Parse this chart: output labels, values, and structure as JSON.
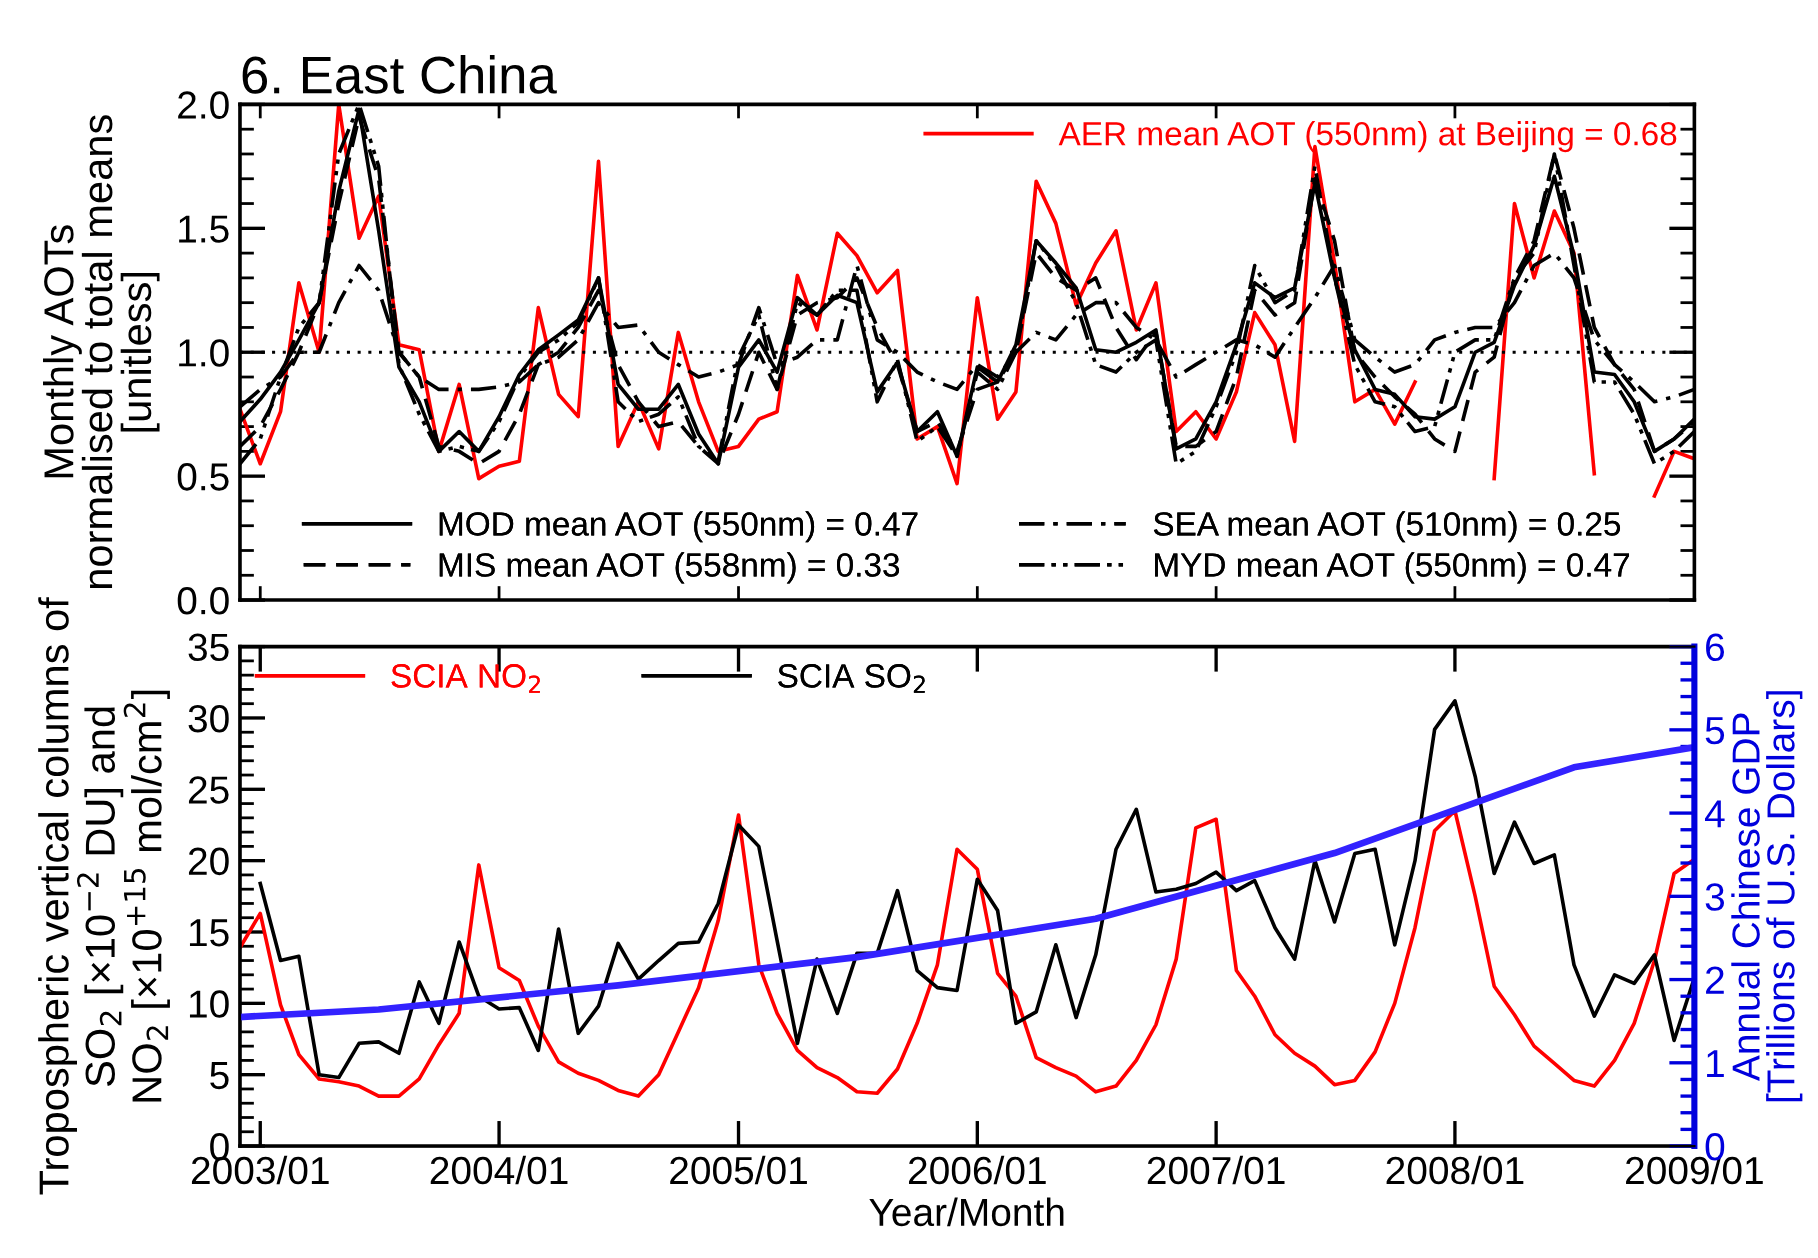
{
  "chart_data": [
    {
      "type": "line",
      "title": "6. East China",
      "ylabel": "Monthly AOTs\nnormalised to total means\n[unitless]",
      "x": [
        "2002-12",
        "2003-01",
        "2003-02",
        "2003-03",
        "2003-04",
        "2003-05",
        "2003-06",
        "2003-07",
        "2003-08",
        "2003-09",
        "2003-10",
        "2003-11",
        "2003-12",
        "2004-01",
        "2004-02",
        "2004-03",
        "2004-04",
        "2004-05",
        "2004-06",
        "2004-07",
        "2004-08",
        "2004-09",
        "2004-10",
        "2004-11",
        "2004-12",
        "2005-01",
        "2005-02",
        "2005-03",
        "2005-04",
        "2005-05",
        "2005-06",
        "2005-07",
        "2005-08",
        "2005-09",
        "2005-10",
        "2005-11",
        "2005-12",
        "2006-01",
        "2006-02",
        "2006-03",
        "2006-04",
        "2006-05",
        "2006-06",
        "2006-07",
        "2006-08",
        "2006-09",
        "2006-10",
        "2006-11",
        "2006-12",
        "2007-01",
        "2007-02",
        "2007-03",
        "2007-04",
        "2007-05",
        "2007-06",
        "2007-07",
        "2007-08",
        "2007-09",
        "2007-10",
        "2007-11",
        "2007-12",
        "2008-01",
        "2008-02",
        "2008-03",
        "2008-04",
        "2008-05",
        "2008-06",
        "2008-07",
        "2008-08",
        "2008-09",
        "2008-10",
        "2008-11",
        "2008-12",
        "2009-01"
      ],
      "series": [
        {
          "name": "AER mean AOT (550nm) at Beijing = 0.68",
          "color": "#ff0000",
          "line_style": "solid",
          "values": [
            0.77,
            0.55,
            0.76,
            1.28,
            1.0,
            2.0,
            1.46,
            1.63,
            1.03,
            1.01,
            0.6,
            0.87,
            0.49,
            0.54,
            0.56,
            1.18,
            0.83,
            0.74,
            1.77,
            0.62,
            0.8,
            0.61,
            1.08,
            0.8,
            0.6,
            0.62,
            0.73,
            0.76,
            1.31,
            1.09,
            1.48,
            1.39,
            1.24,
            1.33,
            0.65,
            0.7,
            0.47,
            1.22,
            0.73,
            0.84,
            1.69,
            1.52,
            1.19,
            1.36,
            1.49,
            1.09,
            1.28,
            0.68,
            0.76,
            0.65,
            0.84,
            1.16,
            1.03,
            0.64,
            1.83,
            1.36,
            0.8,
            0.85,
            0.71,
            0.88,
            null,
            null,
            null,
            0.49,
            1.6,
            1.3,
            1.57,
            1.4,
            0.51,
            null,
            null,
            0.42,
            0.6,
            0.57
          ]
        },
        {
          "name": "MOD mean AOT (550nm) = 0.47",
          "color": "#000000",
          "line_style": "solid",
          "values": [
            0.72,
            0.81,
            0.92,
            1.05,
            1.2,
            1.65,
            1.98,
            1.49,
            0.94,
            0.8,
            0.6,
            0.68,
            0.6,
            0.74,
            0.91,
            1.01,
            1.07,
            1.13,
            1.3,
            0.87,
            0.77,
            0.77,
            0.87,
            0.67,
            0.55,
            0.94,
            1.05,
            0.92,
            1.22,
            1.15,
            1.23,
            1.2,
            0.84,
            0.96,
            0.68,
            0.76,
            0.58,
            0.94,
            0.88,
            1.03,
            1.45,
            1.36,
            1.26,
            1.01,
            1.0,
            1.04,
            1.09,
            0.61,
            0.65,
            0.8,
            1.03,
            1.28,
            1.22,
            1.26,
            1.68,
            1.3,
            1.01,
            0.85,
            0.83,
            0.74,
            0.73,
            0.78,
            1.0,
            1.04,
            1.27,
            1.43,
            1.71,
            1.39,
            0.92,
            0.91,
            0.8,
            0.6,
            0.65,
            0.73
          ]
        },
        {
          "name": "MIS mean AOT (558nm) = 0.33",
          "color": "#000000",
          "line_style": "dashed",
          "values": [
            0.62,
            0.7,
            0.85,
            1.0,
            1.2,
            1.6,
            1.95,
            1.7,
            1.0,
            0.9,
            0.62,
            0.6,
            0.55,
            0.6,
            0.75,
            0.95,
            1.0,
            1.1,
            1.25,
            0.95,
            0.8,
            0.7,
            0.72,
            0.62,
            0.55,
            0.75,
            1.0,
            0.85,
            1.15,
            1.2,
            1.22,
            1.3,
            1.1,
            0.95,
            0.68,
            0.72,
            0.6,
            0.85,
            0.88,
            1.0,
            1.4,
            1.3,
            1.25,
            1.3,
            1.1,
            0.97,
            1.08,
            0.62,
            0.62,
            0.68,
            0.9,
            1.25,
            1.15,
            1.2,
            1.7,
            1.45,
            1.0,
            0.9,
            0.82,
            0.75,
            0.65,
            0.6,
            0.92,
            0.98,
            1.3,
            1.45,
            1.8,
            1.5,
            1.1,
            0.95,
            0.85,
            0.6,
            0.65,
            0.72
          ]
        },
        {
          "name": "SEA mean AOT (510nm) = 0.25",
          "color": "#000000",
          "line_style": "dashdot",
          "values": [
            0.78,
            0.85,
            0.9,
            1.0,
            1.0,
            1.2,
            1.35,
            1.25,
            1.0,
            0.9,
            0.85,
            0.85,
            0.85,
            0.86,
            0.88,
            0.95,
            0.98,
            1.05,
            1.2,
            1.1,
            1.11,
            1.0,
            0.95,
            0.9,
            0.92,
            0.95,
            1.18,
            0.95,
            0.98,
            1.05,
            1.05,
            1.35,
            1.05,
            1.0,
            0.92,
            0.88,
            0.85,
            0.95,
            0.9,
            1.0,
            1.08,
            1.05,
            1.15,
            1.2,
            1.2,
            1.1,
            1.05,
            0.9,
            0.95,
            1.0,
            1.05,
            1.03,
            0.98,
            1.1,
            1.22,
            1.35,
            1.05,
            0.98,
            0.92,
            0.95,
            1.05,
            1.08,
            1.1,
            1.1,
            1.2,
            1.35,
            1.4,
            1.3,
            1.05,
            0.95,
            0.88,
            0.8,
            0.82,
            0.85
          ]
        },
        {
          "name": "MYD mean AOT (550nm) = 0.47",
          "color": "#000000",
          "line_style": "dashdotdot",
          "values": [
            0.55,
            0.65,
            0.9,
            1.1,
            1.2,
            1.8,
            2.0,
            1.75,
            0.95,
            0.75,
            0.6,
            0.62,
            0.6,
            0.72,
            0.9,
            1.0,
            1.05,
            1.12,
            1.3,
            0.8,
            0.72,
            0.75,
            0.82,
            0.62,
            0.56,
            0.98,
            1.15,
            0.85,
            1.2,
            1.15,
            1.25,
            1.25,
            0.8,
            0.97,
            0.64,
            0.7,
            0.58,
            0.92,
            0.85,
            1.0,
            1.45,
            1.35,
            1.2,
            0.95,
            0.92,
            1.0,
            1.05,
            0.55,
            0.6,
            0.78,
            1.0,
            1.35,
            1.2,
            1.25,
            1.75,
            1.3,
            0.95,
            0.8,
            0.78,
            0.68,
            0.7,
            1.0,
            1.05,
            1.05,
            1.3,
            1.4,
            1.8,
            1.35,
            0.88,
            0.88,
            0.75,
            0.55,
            0.6,
            0.68
          ]
        }
      ],
      "ref_lines": [
        {
          "axis": "y",
          "value": 1.0,
          "color": "#000000",
          "line_style": "dotted"
        }
      ],
      "xlim": [
        "2002-12",
        "2009-01"
      ],
      "xticks": [
        {
          "value": "2003-01",
          "label": null
        },
        {
          "value": "2004-01",
          "label": null
        },
        {
          "value": "2005-01",
          "label": null
        },
        {
          "value": "2006-01",
          "label": null
        },
        {
          "value": "2007-01",
          "label": null
        },
        {
          "value": "2008-01",
          "label": null
        },
        {
          "value": "2009-01",
          "label": null
        }
      ],
      "ylim": [
        0,
        2
      ],
      "yticks": [
        {
          "value": 0,
          "label": "0.0"
        },
        {
          "value": 0.1,
          "label": null
        },
        {
          "value": 0.2,
          "label": null
        },
        {
          "value": 0.3,
          "label": null
        },
        {
          "value": 0.4,
          "label": null
        },
        {
          "value": 0.5,
          "label": "0.5"
        },
        {
          "value": 0.6,
          "label": null
        },
        {
          "value": 0.7,
          "label": null
        },
        {
          "value": 0.8,
          "label": null
        },
        {
          "value": 0.9,
          "label": null
        },
        {
          "value": 1.0,
          "label": "1.0"
        },
        {
          "value": 1.1,
          "label": null
        },
        {
          "value": 1.2,
          "label": null
        },
        {
          "value": 1.3,
          "label": null
        },
        {
          "value": 1.4,
          "label": null
        },
        {
          "value": 1.5,
          "label": "1.5"
        },
        {
          "value": 1.6,
          "label": null
        },
        {
          "value": 1.7,
          "label": null
        },
        {
          "value": 1.8,
          "label": null
        },
        {
          "value": 1.9,
          "label": null
        },
        {
          "value": 2.0,
          "label": "2.0"
        }
      ],
      "tick_labels": "y",
      "grid": false,
      "legend": "bottom"
    },
    {
      "type": "line",
      "xlabel": "Year/Month",
      "ylabel": "Tropospheric vertical columns of\nSO$_{2}$ [×10$^{−2}$ DU] and\nNO$_{2}$ [×10$^{+15}$ mol/cm$^{2}$]",
      "y2label": "Annual Chinese GDP\n[Trillions of U.S. Dollars]",
      "x": [
        "2002-12",
        "2003-01",
        "2003-02",
        "2003-03",
        "2003-04",
        "2003-05",
        "2003-06",
        "2003-07",
        "2003-08",
        "2003-09",
        "2003-10",
        "2003-11",
        "2003-12",
        "2004-01",
        "2004-02",
        "2004-03",
        "2004-04",
        "2004-05",
        "2004-06",
        "2004-07",
        "2004-08",
        "2004-09",
        "2004-10",
        "2004-11",
        "2004-12",
        "2005-01",
        "2005-02",
        "2005-03",
        "2005-04",
        "2005-05",
        "2005-06",
        "2005-07",
        "2005-08",
        "2005-09",
        "2005-10",
        "2005-11",
        "2005-12",
        "2006-01",
        "2006-02",
        "2006-03",
        "2006-04",
        "2006-05",
        "2006-06",
        "2006-07",
        "2006-08",
        "2006-09",
        "2006-10",
        "2006-11",
        "2006-12",
        "2007-01",
        "2007-02",
        "2007-03",
        "2007-04",
        "2007-05",
        "2007-06",
        "2007-07",
        "2007-08",
        "2007-09",
        "2007-10",
        "2007-11",
        "2007-12",
        "2008-01",
        "2008-02",
        "2008-03",
        "2008-04",
        "2008-05",
        "2008-06",
        "2008-07",
        "2008-08",
        "2008-09",
        "2008-10",
        "2008-11",
        "2008-12",
        "2009-01"
      ],
      "series": [
        {
          "name": "SCIA NO$_{2}$",
          "color": "#ff0000",
          "values": [
            13.9,
            16.3,
            9.9,
            6.4,
            4.7,
            4.5,
            4.2,
            3.5,
            3.5,
            4.7,
            7.1,
            9.3,
            19.7,
            12.5,
            11.6,
            8.4,
            5.9,
            5.1,
            4.6,
            3.9,
            3.5,
            5.0,
            8.0,
            11.1,
            15.8,
            23.2,
            12.7,
            9.3,
            6.7,
            5.5,
            4.8,
            3.8,
            3.7,
            5.4,
            8.6,
            12.7,
            20.8,
            19.4,
            12.1,
            10.5,
            6.2,
            5.5,
            4.9,
            3.8,
            4.2,
            6.0,
            8.5,
            13.1,
            22.3,
            22.9,
            12.3,
            10.5,
            7.8,
            6.5,
            5.6,
            4.3,
            4.6,
            6.6,
            10.0,
            15.3,
            22.1,
            23.5,
            17.5,
            11.2,
            9.2,
            7.0,
            5.8,
            4.6,
            4.2,
            6.0,
            8.6,
            13.0,
            19.1,
            20.1
          ]
        },
        {
          "name": "SCIA SO$_{2}$",
          "color": "#000000",
          "values": [
            null,
            18.4,
            13.0,
            13.3,
            5.0,
            4.8,
            7.2,
            7.3,
            6.5,
            11.5,
            8.6,
            14.3,
            10.5,
            9.6,
            9.7,
            6.7,
            15.2,
            7.9,
            9.8,
            14.2,
            11.7,
            13.0,
            14.2,
            14.3,
            17.0,
            22.5,
            21.0,
            14.4,
            7.2,
            13.1,
            9.3,
            13.5,
            13.5,
            17.9,
            12.3,
            11.1,
            10.9,
            18.7,
            16.5,
            8.6,
            9.4,
            14.1,
            9.0,
            13.4,
            20.8,
            23.6,
            17.8,
            18.0,
            18.4,
            19.2,
            17.9,
            18.6,
            15.3,
            13.1,
            20.0,
            15.7,
            20.5,
            20.8,
            14.1,
            20.0,
            29.2,
            31.2,
            25.9,
            19.1,
            22.7,
            19.8,
            20.4,
            12.7,
            9.1,
            12.0,
            11.4,
            13.4,
            7.4,
            11.8
          ]
        },
        {
          "color": "#3322ff",
          "axis": "y2",
          "x": [
            "2002-12",
            "2003-07",
            "2004-07",
            "2005-07",
            "2006-07",
            "2007-07",
            "2008-07",
            "2009-01"
          ],
          "values": [
            1.55,
            1.64,
            1.93,
            2.27,
            2.73,
            3.52,
            4.55,
            4.79
          ]
        }
      ],
      "xlim": [
        "2002-12",
        "2009-01"
      ],
      "xticks": [
        {
          "value": "2003-01",
          "label": "2003/01"
        },
        {
          "value": "2004-01",
          "label": "2004/01"
        },
        {
          "value": "2005-01",
          "label": "2005/01"
        },
        {
          "value": "2006-01",
          "label": "2006/01"
        },
        {
          "value": "2007-01",
          "label": "2007/01"
        },
        {
          "value": "2008-01",
          "label": "2008/01"
        },
        {
          "value": "2009-01",
          "label": "2009/01"
        }
      ],
      "ylim": [
        0,
        35
      ],
      "yticks": [
        0,
        {
          "value": 1,
          "label": null
        },
        {
          "value": 2,
          "label": null
        },
        {
          "value": 3,
          "label": null
        },
        {
          "value": 4,
          "label": null
        },
        5,
        {
          "value": 6,
          "label": null
        },
        {
          "value": 7,
          "label": null
        },
        {
          "value": 8,
          "label": null
        },
        {
          "value": 9,
          "label": null
        },
        10,
        {
          "value": 11,
          "label": null
        },
        {
          "value": 12,
          "label": null
        },
        {
          "value": 13,
          "label": null
        },
        {
          "value": 14,
          "label": null
        },
        15,
        {
          "value": 16,
          "label": null
        },
        {
          "value": 17,
          "label": null
        },
        {
          "value": 18,
          "label": null
        },
        {
          "value": 19,
          "label": null
        },
        20,
        {
          "value": 21,
          "label": null
        },
        {
          "value": 22,
          "label": null
        },
        {
          "value": 23,
          "label": null
        },
        {
          "value": 24,
          "label": null
        },
        25,
        {
          "value": 26,
          "label": null
        },
        {
          "value": 27,
          "label": null
        },
        {
          "value": 28,
          "label": null
        },
        {
          "value": 29,
          "label": null
        },
        30,
        {
          "value": 31,
          "label": null
        },
        {
          "value": 32,
          "label": null
        },
        {
          "value": 33,
          "label": null
        },
        {
          "value": 34,
          "label": null
        },
        35
      ],
      "y2lim": [
        0,
        6
      ],
      "y2ticks": [
        0,
        {
          "value": 0.2,
          "label": null
        },
        {
          "value": 0.4,
          "label": null
        },
        {
          "value": 0.6,
          "label": null
        },
        {
          "value": 0.8,
          "label": null
        },
        1,
        {
          "value": 1.2,
          "label": null
        },
        {
          "value": 1.4,
          "label": null
        },
        {
          "value": 1.6,
          "label": null
        },
        {
          "value": 1.8,
          "label": null
        },
        2,
        {
          "value": 2.2,
          "label": null
        },
        {
          "value": 2.4,
          "label": null
        },
        {
          "value": 2.6,
          "label": null
        },
        {
          "value": 2.8,
          "label": null
        },
        3,
        {
          "value": 3.2,
          "label": null
        },
        {
          "value": 3.4,
          "label": null
        },
        {
          "value": 3.6,
          "label": null
        },
        {
          "value": 3.8,
          "label": null
        },
        4,
        {
          "value": 4.2,
          "label": null
        },
        {
          "value": 4.4,
          "label": null
        },
        {
          "value": 4.6,
          "label": null
        },
        {
          "value": 4.8,
          "label": null
        },
        5,
        {
          "value": 5.2,
          "label": null
        },
        {
          "value": 5.4,
          "label": null
        },
        {
          "value": 5.6,
          "label": null
        },
        {
          "value": 5.8,
          "label": null
        },
        6
      ],
      "grid": false,
      "legend": "top left"
    }
  ]
}
